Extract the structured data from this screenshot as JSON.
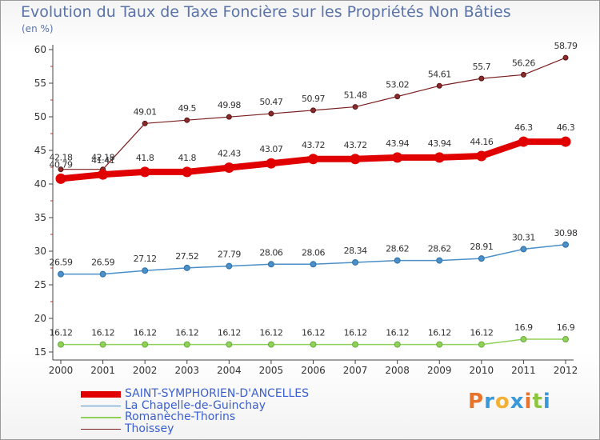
{
  "header": {
    "title": "Evolution du Taux de Taxe Foncière sur les Propriétés Non Bâties",
    "unit": "(en %)"
  },
  "chart_data": {
    "type": "line",
    "title": "Evolution du Taux de Taxe Foncière sur les Propriétés Non Bâties",
    "ylabel": "(en %)",
    "xlabel": "",
    "x": [
      "2000",
      "2001",
      "2002",
      "2003",
      "2004",
      "2005",
      "2006",
      "2007",
      "2008",
      "2009",
      "2010",
      "2011",
      "2012"
    ],
    "ylim": [
      15,
      60
    ],
    "yticks": [
      15,
      20,
      25,
      30,
      35,
      40,
      45,
      50,
      55,
      60
    ],
    "grid": false,
    "legend_position": "bottom-left",
    "series": [
      {
        "name": "SAINT-SYMPHORIEN-D'ANCELLES",
        "color": "#e00000",
        "values": [
          40.79,
          41.41,
          41.8,
          41.8,
          42.43,
          43.07,
          43.72,
          43.72,
          43.94,
          43.94,
          44.16,
          46.3,
          46.3
        ],
        "labels": [
          "40.79",
          "41.41",
          "41.8",
          "41.8",
          "42.43",
          "43.07",
          "43.72",
          "43.72",
          "43.94",
          "43.94",
          "44.16",
          "46.3",
          "46.3"
        ]
      },
      {
        "name": "La Chapelle-de-Guinchay",
        "color": "#4a8fc8",
        "values": [
          26.59,
          26.59,
          27.12,
          27.52,
          27.79,
          28.06,
          28.06,
          28.34,
          28.62,
          28.62,
          28.91,
          30.31,
          30.98
        ],
        "labels": [
          "26.59",
          "26.59",
          "27.12",
          "27.52",
          "27.79",
          "28.06",
          "28.06",
          "28.34",
          "28.62",
          "28.62",
          "28.91",
          "30.31",
          "30.98"
        ]
      },
      {
        "name": "Romanèche-Thorins",
        "color": "#8fd25a",
        "values": [
          16.12,
          16.12,
          16.12,
          16.12,
          16.12,
          16.12,
          16.12,
          16.12,
          16.12,
          16.12,
          16.12,
          16.9,
          16.9
        ],
        "labels": [
          "16.12",
          "16.12",
          "16.12",
          "16.12",
          "16.12",
          "16.12",
          "16.12",
          "16.12",
          "16.12",
          "16.12",
          "16.12",
          "16.9",
          "16.9"
        ]
      },
      {
        "name": "Thoissey",
        "color": "#7a1f1f",
        "values": [
          42.18,
          42.18,
          49.01,
          49.5,
          49.98,
          50.47,
          50.97,
          51.48,
          53.02,
          54.61,
          55.7,
          56.26,
          58.79
        ],
        "labels": [
          "42.18",
          "42.18",
          "49.01",
          "49.5",
          "49.98",
          "50.47",
          "50.97",
          "51.48",
          "53.02",
          "54.61",
          "55.7",
          "56.26",
          "58.79"
        ]
      }
    ]
  },
  "logo": {
    "text": "Proxiti",
    "letters": [
      {
        "ch": "P",
        "color": "#e8732a"
      },
      {
        "ch": "r",
        "color": "#3a9ad9"
      },
      {
        "ch": "o",
        "color": "#f2b134"
      },
      {
        "ch": "x",
        "color": "#3a9ad9"
      },
      {
        "ch": "i",
        "color": "#e8732a"
      },
      {
        "ch": "t",
        "color": "#8cc63f"
      },
      {
        "ch": "i",
        "color": "#3a9ad9"
      }
    ]
  }
}
